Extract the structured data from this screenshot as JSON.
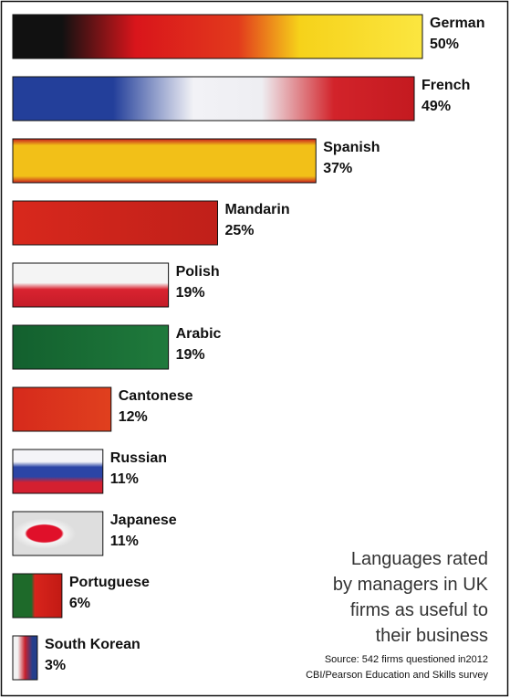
{
  "chart_data": {
    "type": "bar",
    "orientation": "horizontal",
    "title": "Languages rated by managers in UK firms as useful to their business",
    "source": [
      "Source: 542 firms questioned in2012",
      "CBI/Pearson Education and Skills survey"
    ],
    "categories": [
      "German",
      "French",
      "Spanish",
      "Mandarin",
      "Polish",
      "Arabic",
      "Cantonese",
      "Russian",
      "Japanese",
      "Portuguese",
      "South Korean"
    ],
    "values": [
      50,
      49,
      37,
      25,
      19,
      19,
      12,
      11,
      11,
      6,
      3
    ],
    "value_labels": [
      "50%",
      "49%",
      "37%",
      "25%",
      "19%",
      "19%",
      "12%",
      "11%",
      "11%",
      "6%",
      "3%"
    ]
  }
}
